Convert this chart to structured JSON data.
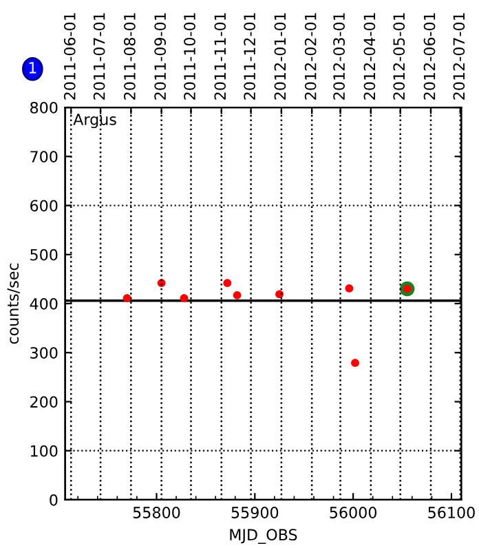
{
  "chart_data": {
    "type": "scatter",
    "xlabel": "MJD_OBS",
    "ylabel": "counts/sec",
    "series": [
      {
        "color": "#208020",
        "x": [
          56055
        ],
        "values": [
          430
        ],
        "marker": "circle"
      },
      {
        "color": "#ff0000",
        "x": [
          55770,
          55805,
          55828,
          55872,
          55882,
          55925,
          55996,
          56002,
          56055
        ],
        "values": [
          411,
          442,
          411,
          442,
          417,
          419,
          431,
          279,
          430
        ],
        "marker": "circle"
      }
    ],
    "annotations": [
      "Argus",
      "1"
    ],
    "xlim": [
      55707,
      56110
    ],
    "xticks": [
      55800,
      55900,
      56000,
      56100
    ],
    "x2lim": [
      "2011-05-26",
      "2012-07-02"
    ],
    "x2ticks": [
      "2011-06-01",
      "2011-07-01",
      "2011-08-01",
      "2011-09-01",
      "2011-10-01",
      "2011-11-01",
      "2011-12-01",
      "2012-01-01",
      "2012-02-01",
      "2012-03-01",
      "2012-04-01",
      "2012-05-01",
      "2012-06-01",
      "2012-07-01"
    ],
    "ylim": [
      0,
      800
    ],
    "yticks": [
      0,
      100,
      200,
      300,
      400,
      500,
      600,
      700,
      800
    ],
    "ref_lines": [
      {
        "axis": "y",
        "value": 406,
        "color": "#000000",
        "line_style": "solid"
      },
      {
        "axis": "y",
        "value": 100,
        "color": "#000000",
        "line_style": "dotted"
      },
      {
        "axis": "y",
        "value": 600,
        "color": "#000000",
        "line_style": "dotted"
      }
    ],
    "grid": "x",
    "legend": false
  }
}
